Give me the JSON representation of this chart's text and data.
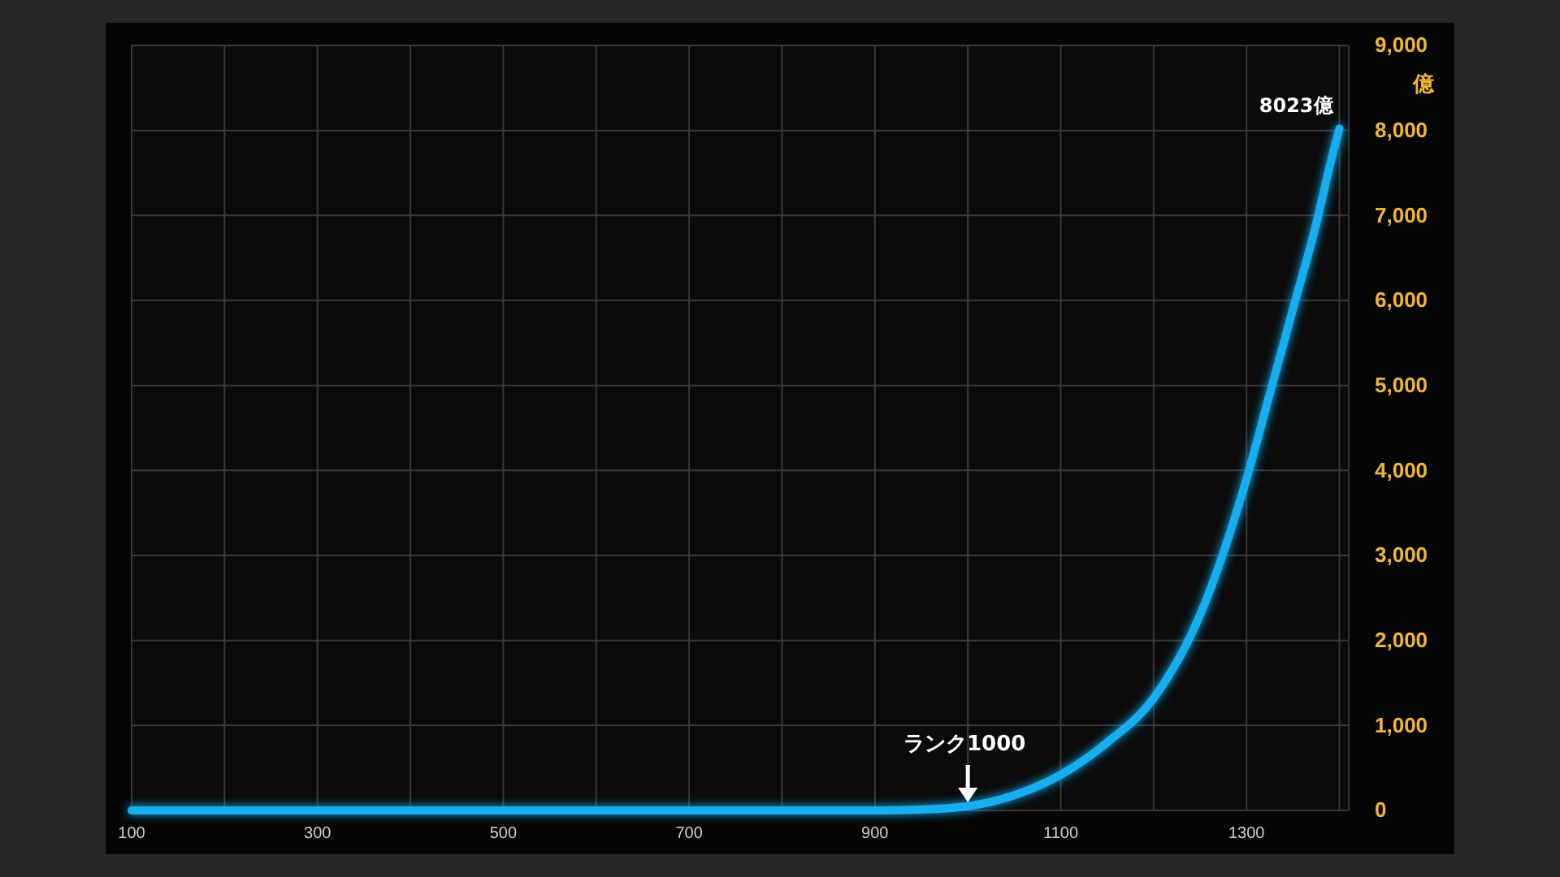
{
  "chart_data": {
    "type": "line",
    "ylabel": "億",
    "x": [
      100,
      900,
      950,
      1000,
      1050,
      1100,
      1150,
      1200,
      1250,
      1300,
      1325,
      1350,
      1375,
      1390,
      1400
    ],
    "series": [
      {
        "color": "#19aeef",
        "values": [
          0,
          0,
          10,
          50,
          180,
          420,
          800,
          1320,
          2300,
          3900,
          4900,
          5900,
          6900,
          7600,
          8023
        ]
      }
    ],
    "xlim": [
      100,
      1410
    ],
    "xticks": [
      100,
      {
        "value": 200,
        "label": null
      },
      300,
      {
        "value": 400,
        "label": null
      },
      500,
      {
        "value": 600,
        "label": null
      },
      700,
      {
        "value": 800,
        "label": null
      },
      900,
      {
        "value": 1000,
        "label": null
      },
      1100,
      {
        "value": 1200,
        "label": null
      },
      1300,
      {
        "value": 1400,
        "label": null
      }
    ],
    "ylim": [
      0,
      9000
    ],
    "yticks": [
      {
        "value": 0,
        "label": "0"
      },
      {
        "value": 1000,
        "label": "1,000"
      },
      {
        "value": 2000,
        "label": "2,000"
      },
      {
        "value": 3000,
        "label": "3,000"
      },
      {
        "value": 4000,
        "label": "4,000"
      },
      {
        "value": 5000,
        "label": "5,000"
      },
      {
        "value": 6000,
        "label": "6,000"
      },
      {
        "value": 7000,
        "label": "7,000"
      },
      {
        "value": 8000,
        "label": "8,000"
      },
      {
        "value": 9000,
        "label": "9,000"
      }
    ],
    "grid": true,
    "marker": "none",
    "line_style": "solid",
    "annotations": [
      {
        "text": "8023億",
        "x": 1400,
        "y": 8023
      },
      {
        "text": "ランク1000",
        "x": 1000,
        "y": 0
      }
    ]
  }
}
